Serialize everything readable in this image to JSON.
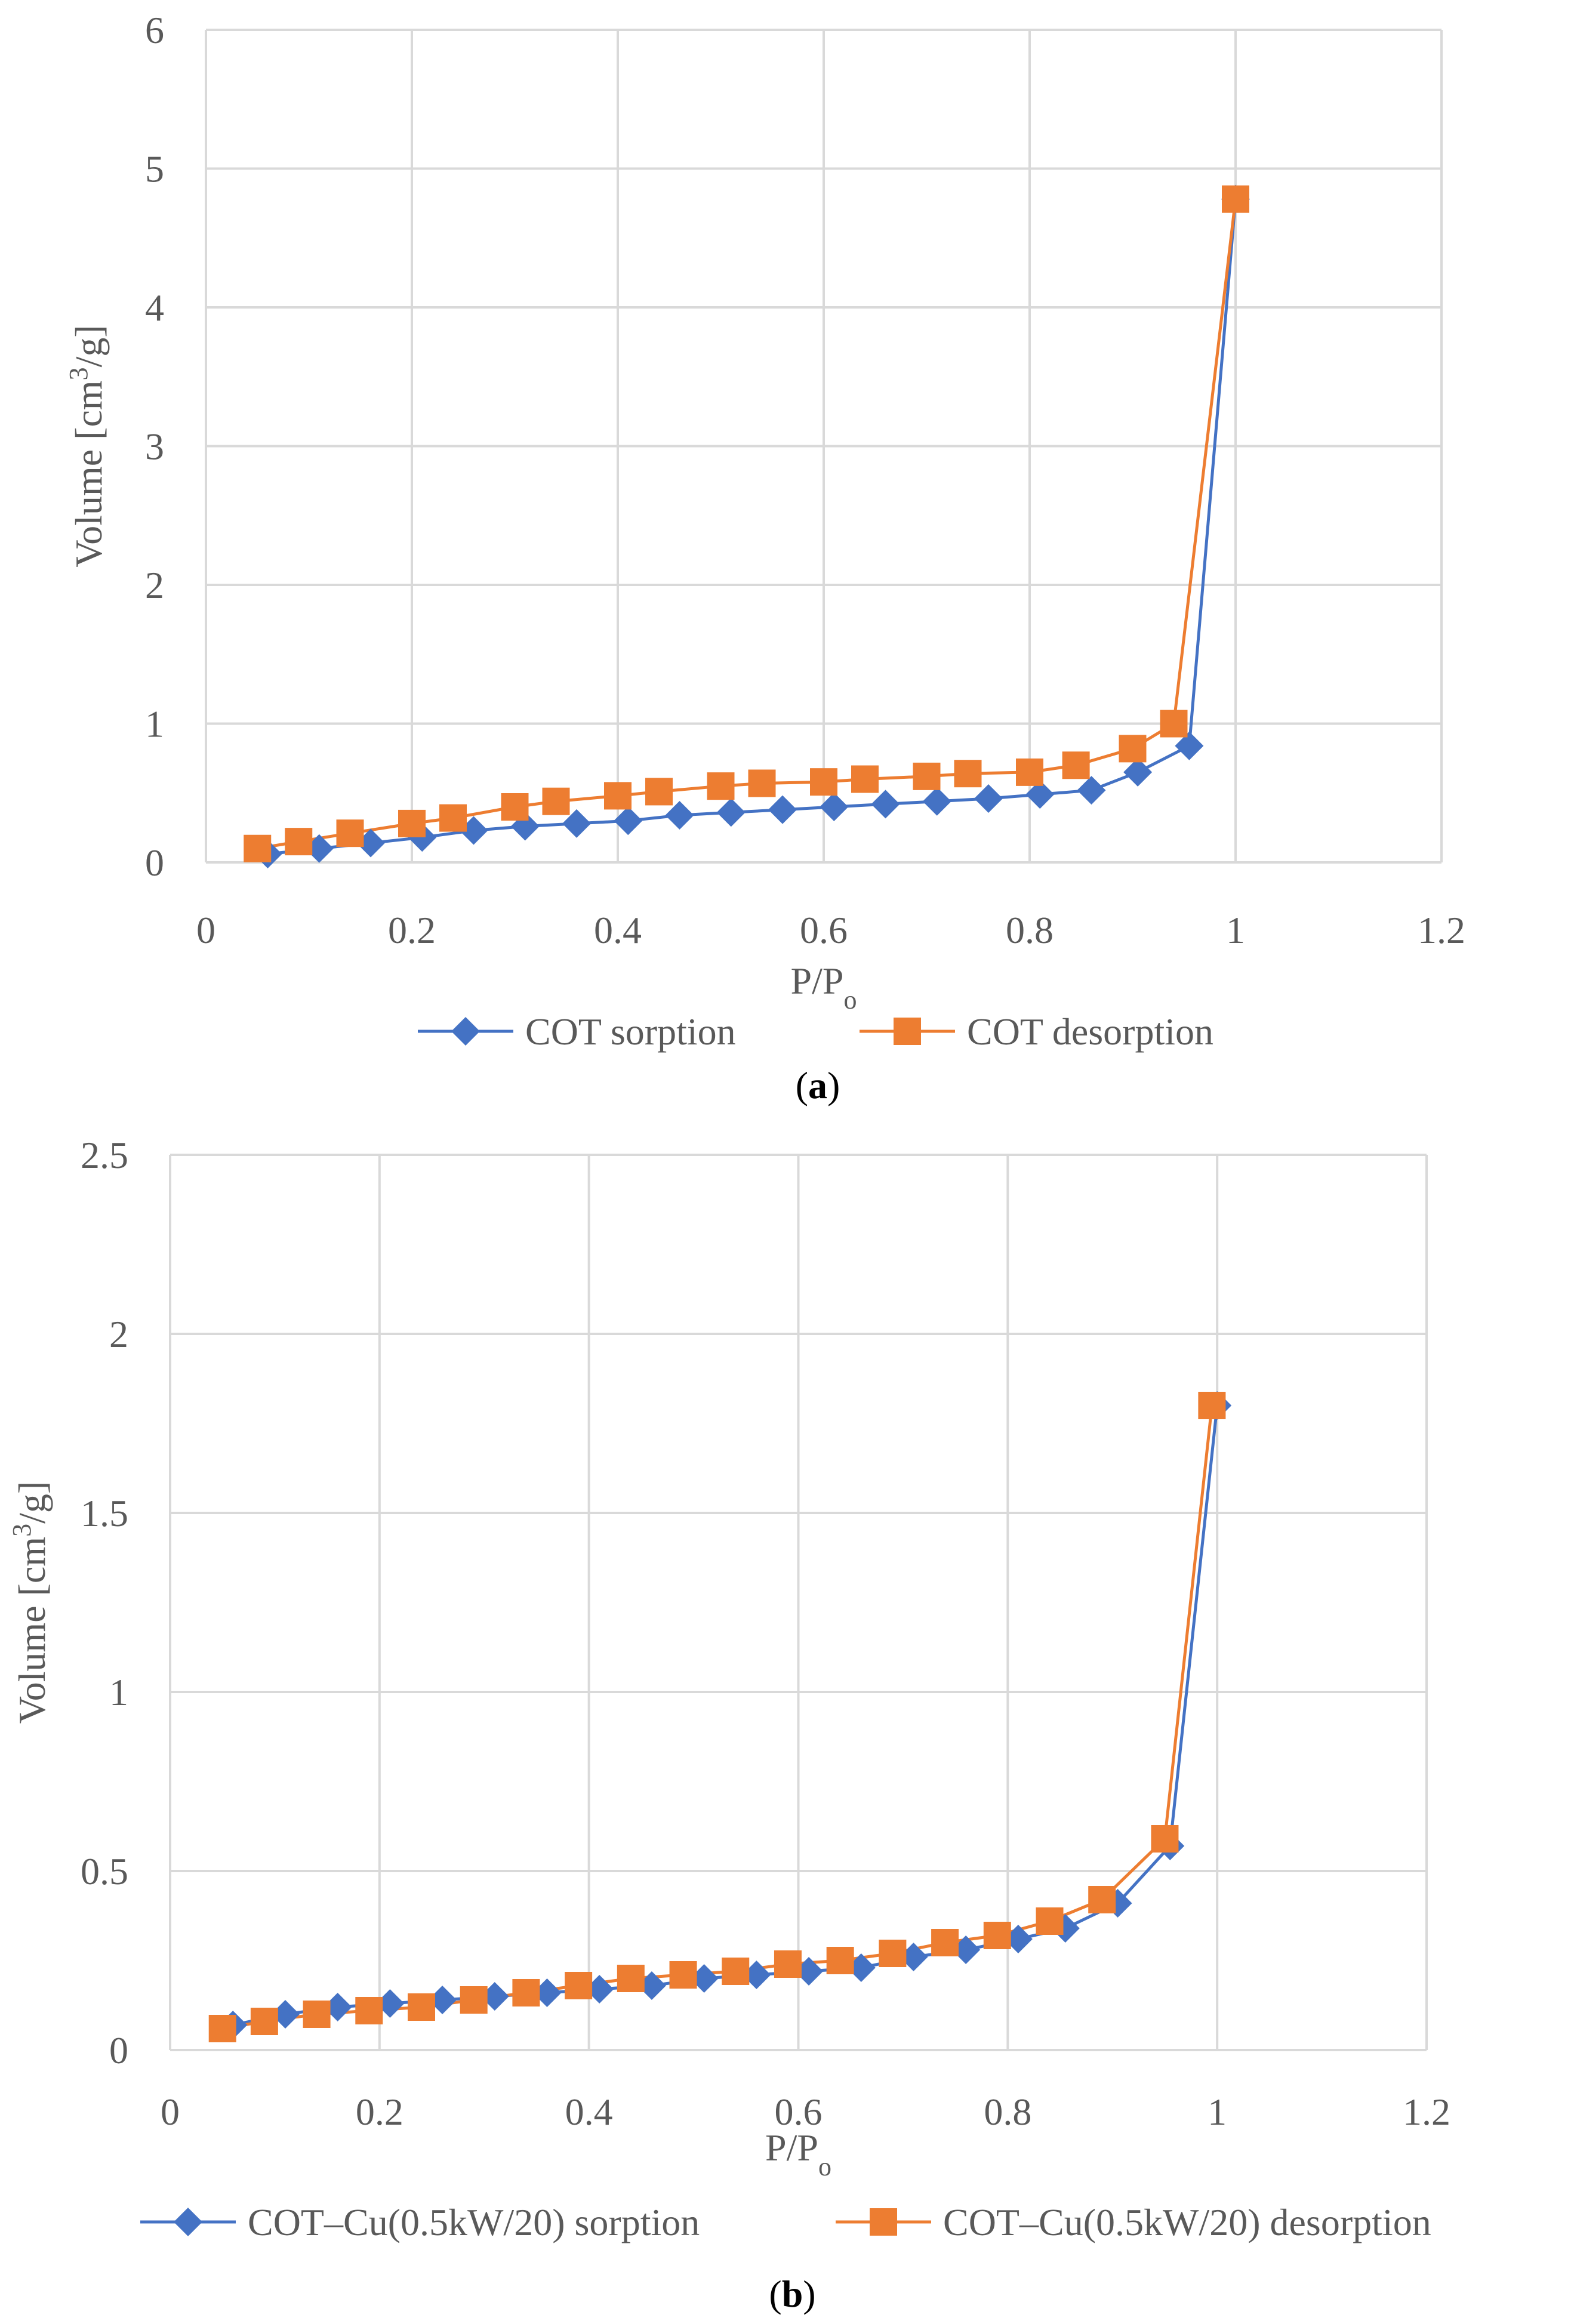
{
  "figure": {
    "charts": [
      {
        "panel_letter": "a",
        "caption_open": "(",
        "caption_close": ")"
      },
      {
        "panel_letter": "b",
        "caption_open": "(",
        "caption_close": ")"
      }
    ]
  },
  "colors": {
    "sorption": "#4472C4",
    "desorption": "#ED7D31",
    "grid": "#D9D9D9",
    "axis_text": "#595959",
    "caption": "#000000"
  },
  "chart_data": [
    {
      "type": "line",
      "title": "",
      "xlabel": "P/P",
      "xlabel_sub": "o",
      "ylabel": "Volume [cm",
      "ylabel_sup": "3",
      "ylabel_end": "/g]",
      "xlim": [
        0,
        1.2
      ],
      "ylim": [
        0,
        6
      ],
      "xticks": [
        0,
        0.2,
        0.4,
        0.6,
        0.8,
        1.0,
        1.2
      ],
      "xtick_labels": [
        "0",
        "0.2",
        "0.4",
        "0.6",
        "0.8",
        "1",
        "1.2"
      ],
      "yticks": [
        0,
        1,
        2,
        3,
        4,
        5,
        6
      ],
      "ytick_labels": [
        "0",
        "1",
        "2",
        "3",
        "4",
        "5",
        "6"
      ],
      "grid": true,
      "legend_position": "bottom",
      "series": [
        {
          "name": "COT sorption",
          "marker": "diamond",
          "color": "#4472C4",
          "x": [
            0.06,
            0.11,
            0.16,
            0.21,
            0.26,
            0.31,
            0.36,
            0.41,
            0.46,
            0.51,
            0.56,
            0.61,
            0.66,
            0.71,
            0.76,
            0.81,
            0.86,
            0.905,
            0.955,
            1.0
          ],
          "y": [
            0.06,
            0.1,
            0.14,
            0.18,
            0.23,
            0.26,
            0.28,
            0.3,
            0.34,
            0.36,
            0.38,
            0.4,
            0.42,
            0.44,
            0.46,
            0.49,
            0.52,
            0.65,
            0.84,
            4.78
          ]
        },
        {
          "name": "COT desorption",
          "marker": "square",
          "color": "#ED7D31",
          "x": [
            1.0,
            0.94,
            0.9,
            0.845,
            0.8,
            0.74,
            0.7,
            0.64,
            0.6,
            0.54,
            0.5,
            0.44,
            0.4,
            0.34,
            0.3,
            0.24,
            0.2,
            0.14,
            0.09,
            0.05
          ],
          "y": [
            4.78,
            1.0,
            0.82,
            0.7,
            0.65,
            0.64,
            0.62,
            0.6,
            0.58,
            0.57,
            0.55,
            0.51,
            0.48,
            0.44,
            0.4,
            0.32,
            0.28,
            0.21,
            0.15,
            0.1
          ]
        }
      ]
    },
    {
      "type": "line",
      "title": "",
      "xlabel": "P/P",
      "xlabel_sub": "o",
      "ylabel": "Volume [cm",
      "ylabel_sup": "3",
      "ylabel_end": "/g]",
      "xlim": [
        0,
        1.2
      ],
      "ylim": [
        0,
        2.5
      ],
      "xticks": [
        0,
        0.2,
        0.4,
        0.6,
        0.8,
        1.0,
        1.2
      ],
      "xtick_labels": [
        "0",
        "0.2",
        "0.4",
        "0.6",
        "0.8",
        "1",
        "1.2"
      ],
      "yticks": [
        0,
        0.5,
        1,
        1.5,
        2,
        2.5
      ],
      "ytick_labels": [
        "0",
        "0.5",
        "1",
        "1.5",
        "2",
        "2.5"
      ],
      "grid": true,
      "legend_position": "bottom",
      "series": [
        {
          "name": "COT–Cu(0.5kW/20) sorption",
          "marker": "diamond",
          "color": "#4472C4",
          "x": [
            0.06,
            0.11,
            0.16,
            0.21,
            0.26,
            0.31,
            0.36,
            0.41,
            0.46,
            0.51,
            0.56,
            0.61,
            0.66,
            0.71,
            0.76,
            0.81,
            0.855,
            0.905,
            0.955,
            1.0
          ],
          "y": [
            0.07,
            0.1,
            0.12,
            0.13,
            0.14,
            0.15,
            0.16,
            0.17,
            0.18,
            0.2,
            0.21,
            0.22,
            0.23,
            0.26,
            0.28,
            0.31,
            0.34,
            0.41,
            0.57,
            1.8
          ]
        },
        {
          "name": "COT–Cu(0.5kW/20) desorption",
          "marker": "square",
          "color": "#ED7D31",
          "x": [
            0.995,
            0.95,
            0.89,
            0.84,
            0.79,
            0.74,
            0.69,
            0.64,
            0.59,
            0.54,
            0.49,
            0.44,
            0.39,
            0.34,
            0.29,
            0.24,
            0.19,
            0.14,
            0.09,
            0.05
          ],
          "y": [
            1.8,
            0.59,
            0.42,
            0.36,
            0.32,
            0.3,
            0.27,
            0.25,
            0.24,
            0.22,
            0.21,
            0.2,
            0.18,
            0.16,
            0.14,
            0.12,
            0.11,
            0.1,
            0.08,
            0.06
          ]
        }
      ]
    }
  ]
}
